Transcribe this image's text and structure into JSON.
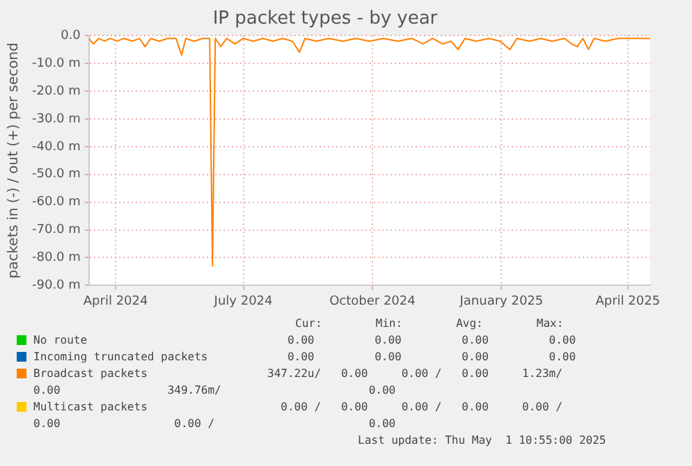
{
  "chart_data": {
    "type": "line",
    "title": "IP packet types - by year",
    "ylabel": "packets in (-) / out (+) per second",
    "x": [
      "2024-03-27",
      "2024-03-30",
      "2024-04-03",
      "2024-04-07",
      "2024-04-11",
      "2024-04-16",
      "2024-04-21",
      "2024-04-27",
      "2024-05-02",
      "2024-05-06",
      "2024-05-10",
      "2024-05-16",
      "2024-05-22",
      "2024-05-28",
      "2024-06-01",
      "2024-06-04",
      "2024-06-10",
      "2024-06-16",
      "2024-06-21",
      "2024-06-23",
      "2024-06-25",
      "2024-06-29",
      "2024-07-03",
      "2024-07-09",
      "2024-07-15",
      "2024-07-22",
      "2024-07-29",
      "2024-08-05",
      "2024-08-12",
      "2024-08-19",
      "2024-08-24",
      "2024-08-28",
      "2024-09-05",
      "2024-09-14",
      "2024-09-24",
      "2024-10-03",
      "2024-10-13",
      "2024-10-23",
      "2024-11-02",
      "2024-11-12",
      "2024-11-20",
      "2024-11-27",
      "2024-12-04",
      "2024-12-10",
      "2024-12-15",
      "2024-12-20",
      "2024-12-28",
      "2025-01-06",
      "2025-01-14",
      "2025-01-21",
      "2025-01-26",
      "2025-02-04",
      "2025-02-12",
      "2025-02-20",
      "2025-03-01",
      "2025-03-06",
      "2025-03-10",
      "2025-03-14",
      "2025-03-18",
      "2025-03-22",
      "2025-03-30",
      "2025-04-08",
      "2025-04-16",
      "2025-04-24",
      "2025-05-01"
    ],
    "series": [
      {
        "name": "No route",
        "color": "#00cc00",
        "values": [
          null,
          null,
          null,
          null,
          null,
          null,
          null,
          null,
          null,
          null,
          null,
          null,
          null,
          null,
          null,
          null,
          null,
          null,
          null,
          null,
          null,
          null,
          null,
          null,
          null,
          null,
          null,
          null,
          null,
          null,
          null,
          null,
          null,
          null,
          null,
          null,
          null,
          null,
          null,
          null,
          null,
          null,
          null,
          null,
          null,
          null,
          null,
          null,
          null,
          null,
          null,
          null,
          null,
          null,
          null,
          null,
          null,
          null,
          null,
          null,
          null,
          null,
          null,
          null,
          null
        ]
      },
      {
        "name": "Incoming truncated packets",
        "color": "#0066b3",
        "values": [
          null,
          null,
          null,
          null,
          null,
          null,
          null,
          null,
          null,
          null,
          null,
          null,
          null,
          null,
          null,
          null,
          null,
          null,
          null,
          null,
          null,
          null,
          null,
          null,
          null,
          null,
          null,
          null,
          null,
          null,
          null,
          null,
          null,
          null,
          null,
          null,
          null,
          null,
          null,
          null,
          null,
          null,
          null,
          null,
          null,
          null,
          null,
          null,
          null,
          null,
          null,
          null,
          null,
          null,
          null,
          null,
          null,
          null,
          null,
          null,
          null,
          null,
          null,
          null,
          null
        ]
      },
      {
        "name": "Broadcast packets",
        "color": "#ff8000",
        "values": [
          -1,
          -3,
          -1,
          -2,
          -1,
          -2,
          -1,
          -2,
          -1,
          -4,
          -1,
          -2,
          -1,
          -1,
          -7,
          -1,
          -2,
          -1,
          -1,
          -83,
          -1,
          -4,
          -1,
          -3,
          -1,
          -2,
          -1,
          -2,
          -1,
          -2,
          -6,
          -1,
          -2,
          -1,
          -2,
          -1,
          -2,
          -1,
          -2,
          -1,
          -3,
          -1,
          -3,
          -2,
          -5,
          -1,
          -2,
          -1,
          -2,
          -5,
          -1,
          -2,
          -1,
          -2,
          -1,
          -3,
          -4,
          -1,
          -5,
          -1,
          -2,
          -1,
          -1,
          -1,
          -1
        ]
      },
      {
        "name": "Multicast packets",
        "color": "#ffcc00",
        "values": [
          null,
          null,
          null,
          null,
          null,
          null,
          null,
          null,
          null,
          null,
          null,
          null,
          null,
          null,
          null,
          null,
          null,
          null,
          null,
          null,
          null,
          null,
          null,
          null,
          null,
          null,
          null,
          null,
          null,
          null,
          null,
          null,
          null,
          null,
          null,
          null,
          null,
          null,
          null,
          null,
          null,
          null,
          null,
          null,
          null,
          null,
          null,
          null,
          null,
          null,
          null,
          null,
          null,
          null,
          null,
          null,
          null,
          null,
          null,
          null,
          null,
          null,
          null,
          null,
          null
        ]
      }
    ],
    "xlim": [
      "2024-03-27",
      "2025-05-01"
    ],
    "xticks": [
      {
        "value": "2024-04-15",
        "label": "April 2024"
      },
      {
        "value": "2024-07-15",
        "label": "July 2024"
      },
      {
        "value": "2024-10-15",
        "label": "October 2024"
      },
      {
        "value": "2025-01-15",
        "label": "January 2025"
      },
      {
        "value": "2025-04-15",
        "label": "April 2025"
      }
    ],
    "ylim": [
      -90,
      0
    ],
    "yticks": [
      {
        "value": -90,
        "label": "-90.0 m"
      },
      {
        "value": -80,
        "label": "-80.0 m"
      },
      {
        "value": -70,
        "label": "-70.0 m"
      },
      {
        "value": -60,
        "label": "-60.0 m"
      },
      {
        "value": -50,
        "label": "-50.0 m"
      },
      {
        "value": -40,
        "label": "-40.0 m"
      },
      {
        "value": -30,
        "label": "-30.0 m"
      },
      {
        "value": -20,
        "label": "-20.0 m"
      },
      {
        "value": -10,
        "label": "-10.0 m"
      },
      {
        "value": 0,
        "label": "0.0"
      }
    ],
    "grid": true,
    "legend": "bottom",
    "marker": "none",
    "line_style": "solid",
    "annotations": [
      "Cur:        Min:        Avg:        Max:",
      "   0.00         0.00         0.00         0.00",
      "   0.00         0.00         0.00         0.00",
      "347.22u/   0.00     0.00 /   0.00     1.23m/",
      "0.00                349.76m/                      0.00",
      "  0.00 /   0.00     0.00 /   0.00     0.00 /",
      "0.00                 0.00 /                       0.00",
      "Last update: Thu May  1 10:55:00 2025"
    ]
  }
}
